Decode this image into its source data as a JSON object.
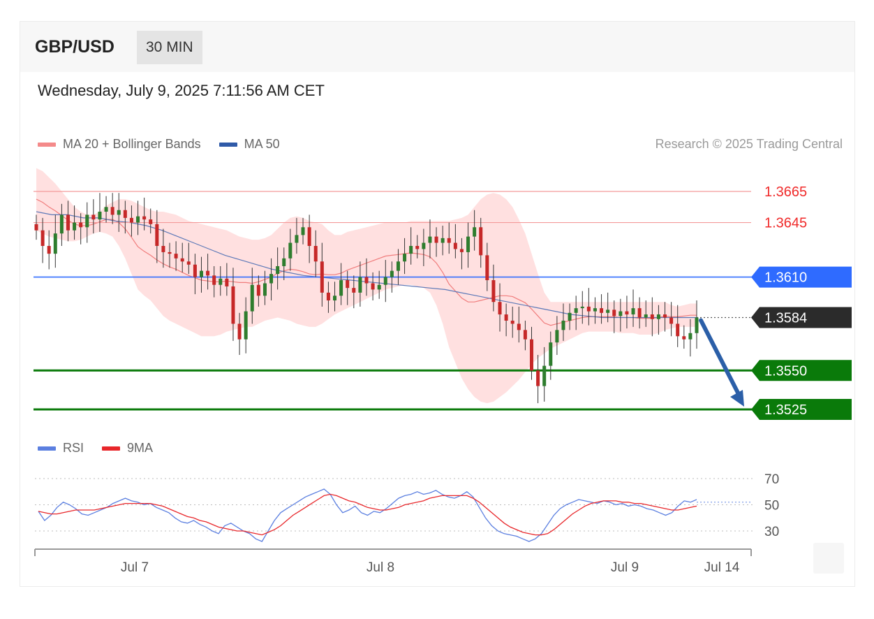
{
  "header": {
    "pair": "GBP/USD",
    "timeframe": "30 MIN",
    "datetime": "Wednesday, July 9, 2025 7:11:56 AM CET"
  },
  "legend_top": [
    {
      "label": "MA 20 + Bollinger Bands",
      "color": "#f08080"
    },
    {
      "label": "MA 50",
      "color": "#2f5aa8"
    }
  ],
  "legend_bottom": [
    {
      "label": "RSI",
      "color": "#5b7fe0"
    },
    {
      "label": "9MA",
      "color": "#e8262a"
    }
  ],
  "copyright": "Research © 2025 Trading Central",
  "chart_data": [
    {
      "type": "candlestick",
      "ylim": [
        1.3515,
        1.3685
      ],
      "x_ticks": [
        "Jul 7",
        "Jul 8",
        "Jul 9",
        "Jul 14"
      ],
      "levels": [
        {
          "value": 1.3665,
          "label": "1.3665",
          "style": "resistance",
          "color": "#f02a2a"
        },
        {
          "value": 1.3645,
          "label": "1.3645",
          "style": "resistance",
          "color": "#f02a2a"
        },
        {
          "value": 1.361,
          "label": "1.3610",
          "style": "pivot",
          "color": "#2f6bff"
        },
        {
          "value": 1.3584,
          "label": "1.3584",
          "style": "last_price",
          "color": "#2b2b2b"
        },
        {
          "value": 1.355,
          "label": "1.3550",
          "style": "support",
          "color": "#0a7a0a"
        },
        {
          "value": 1.3525,
          "label": "1.3525",
          "style": "support",
          "color": "#0a7a0a"
        }
      ],
      "close_path": [
        1.364,
        1.363,
        1.3625,
        1.3638,
        1.365,
        1.364,
        1.3645,
        1.3642,
        1.365,
        1.3647,
        1.3652,
        1.3655,
        1.365,
        1.3653,
        1.3648,
        1.3645,
        1.3649,
        1.3647,
        1.3644,
        1.363,
        1.3626,
        1.3625,
        1.3622,
        1.362,
        1.3618,
        1.361,
        1.3614,
        1.3611,
        1.3605,
        1.3609,
        1.3604,
        1.358,
        1.357,
        1.3588,
        1.3605,
        1.3598,
        1.3606,
        1.3612,
        1.3617,
        1.3622,
        1.3632,
        1.3637,
        1.3642,
        1.363,
        1.362,
        1.36,
        1.3595,
        1.3598,
        1.3608,
        1.3603,
        1.36,
        1.361,
        1.3606,
        1.3602,
        1.3605,
        1.361,
        1.3614,
        1.362,
        1.3625,
        1.363,
        1.3628,
        1.3632,
        1.3636,
        1.3632,
        1.3635,
        1.3632,
        1.3628,
        1.3626,
        1.3636,
        1.3642,
        1.3624,
        1.3608,
        1.3594,
        1.3586,
        1.3582,
        1.358,
        1.3576,
        1.357,
        1.355,
        1.354,
        1.3553,
        1.3568,
        1.3576,
        1.3582,
        1.3587,
        1.359,
        1.3591,
        1.3588,
        1.359,
        1.3587,
        1.3589,
        1.3585,
        1.3588,
        1.3586,
        1.359,
        1.3584,
        1.3586,
        1.3583,
        1.3586,
        1.3584,
        1.358,
        1.3572,
        1.357,
        1.3574,
        1.3584
      ],
      "bollinger_upper": [
        1.368,
        1.3678,
        1.3674,
        1.367,
        1.3665,
        1.366,
        1.3655,
        1.3652,
        1.365,
        1.365,
        1.3652,
        1.3656,
        1.3658,
        1.366,
        1.366,
        1.3659,
        1.3657,
        1.3655,
        1.3653,
        1.3652,
        1.3652,
        1.3651,
        1.365,
        1.3648,
        1.3646,
        1.3645,
        1.3644,
        1.3643,
        1.3642,
        1.3641,
        1.364,
        1.3638,
        1.3636,
        1.3635,
        1.3634,
        1.3634,
        1.3635,
        1.3637,
        1.3641,
        1.3645,
        1.3648,
        1.3649,
        1.3648,
        1.3646,
        1.3645,
        1.3644,
        1.364,
        1.3637,
        1.3637,
        1.3639,
        1.364,
        1.3641,
        1.3642,
        1.3643,
        1.3644,
        1.3645,
        1.3645,
        1.3645,
        1.3645,
        1.3646,
        1.3646,
        1.3646,
        1.3646,
        1.3646,
        1.3646,
        1.3646,
        1.3647,
        1.3648,
        1.365,
        1.3655,
        1.366,
        1.3663,
        1.3664,
        1.3663,
        1.366,
        1.3655,
        1.3647,
        1.3638,
        1.3625,
        1.3612,
        1.36,
        1.3594,
        1.3594,
        1.3594,
        1.3594,
        1.3594,
        1.3594,
        1.3594,
        1.3594,
        1.3594,
        1.3594,
        1.3594,
        1.3594,
        1.3594,
        1.3594,
        1.3594,
        1.3594,
        1.3594,
        1.3594,
        1.3594,
        1.3592,
        1.3591,
        1.3592,
        1.3593,
        1.3593
      ],
      "bollinger_lower": [
        1.364,
        1.3638,
        1.3636,
        1.3635,
        1.3634,
        1.3633,
        1.3633,
        1.3634,
        1.3636,
        1.3638,
        1.3639,
        1.3638,
        1.3636,
        1.363,
        1.3622,
        1.3612,
        1.3602,
        1.3598,
        1.3595,
        1.359,
        1.3585,
        1.3582,
        1.358,
        1.3578,
        1.3576,
        1.3574,
        1.3572,
        1.3572,
        1.3572,
        1.3573,
        1.3575,
        1.3576,
        1.3577,
        1.3578,
        1.3578,
        1.358,
        1.3582,
        1.3583,
        1.3584,
        1.3583,
        1.3582,
        1.358,
        1.3579,
        1.3578,
        1.3578,
        1.358,
        1.3583,
        1.3586,
        1.3588,
        1.359,
        1.3592,
        1.3594,
        1.3596,
        1.3598,
        1.36,
        1.3602,
        1.3603,
        1.3604,
        1.3605,
        1.3605,
        1.3604,
        1.3603,
        1.36,
        1.3592,
        1.358,
        1.3565,
        1.3555,
        1.3545,
        1.3538,
        1.3533,
        1.353,
        1.3529,
        1.353,
        1.3533,
        1.3536,
        1.354,
        1.3544,
        1.3549,
        1.3554,
        1.3558,
        1.3561,
        1.3564,
        1.3566,
        1.3568,
        1.357,
        1.3572,
        1.3574,
        1.3575,
        1.3575,
        1.3575,
        1.3575,
        1.3575,
        1.3574,
        1.3574,
        1.3574,
        1.3573,
        1.3573,
        1.3573,
        1.3574,
        1.3576,
        1.3577,
        1.3578,
        1.3578,
        1.3578,
        1.3578
      ],
      "ma50": [
        1.3652,
        1.365,
        1.365,
        1.3648,
        1.3648,
        1.3646,
        1.3645,
        1.3643,
        1.364,
        1.3636,
        1.3632,
        1.3628,
        1.3624,
        1.3621,
        1.3618,
        1.3615,
        1.3613,
        1.3611,
        1.361,
        1.3609,
        1.3608,
        1.3607,
        1.3606,
        1.3605,
        1.3604,
        1.3603,
        1.3602,
        1.36,
        1.3598,
        1.3596,
        1.3594,
        1.3592,
        1.359,
        1.3588,
        1.3586,
        1.3585,
        1.3584,
        1.3584,
        1.3584,
        1.3584,
        1.3584,
        1.3584,
        1.3584
      ],
      "trend_arrow": {
        "from": 1.3584,
        "to": 1.3525
      }
    },
    {
      "type": "line",
      "title": "RSI",
      "ylim": [
        20,
        80
      ],
      "y_ticks": [
        70,
        50,
        30
      ],
      "series": [
        {
          "name": "RSI",
          "color": "#5b7fe0"
        },
        {
          "name": "9MA",
          "color": "#e8262a"
        }
      ],
      "rsi": [
        45,
        38,
        42,
        48,
        52,
        50,
        47,
        43,
        42,
        44,
        46,
        48,
        51,
        53,
        55,
        53,
        52,
        50,
        51,
        48,
        46,
        44,
        40,
        37,
        36,
        38,
        35,
        33,
        30,
        28,
        34,
        36,
        33,
        30,
        28,
        24,
        22,
        30,
        38,
        44,
        47,
        50,
        53,
        56,
        58,
        60,
        62,
        58,
        50,
        44,
        46,
        49,
        44,
        42,
        45,
        44,
        47,
        51,
        55,
        57,
        58,
        60,
        58,
        59,
        61,
        58,
        56,
        55,
        57,
        60,
        56,
        48,
        40,
        34,
        30,
        28,
        27,
        26,
        24,
        22,
        24,
        28,
        35,
        42,
        47,
        50,
        52,
        54,
        53,
        52,
        51,
        53,
        52,
        50,
        51,
        49,
        50,
        49,
        47,
        46,
        44,
        42,
        44,
        49,
        53,
        52,
        54
      ],
      "rsi_ma": [
        45,
        44,
        43,
        43,
        44,
        45,
        46,
        46,
        46,
        46,
        47,
        48,
        49,
        50,
        51,
        51,
        51,
        51,
        51,
        50,
        49,
        47,
        45,
        43,
        41,
        40,
        38,
        37,
        35,
        33,
        32,
        31,
        30,
        30,
        29,
        28,
        27,
        29,
        31,
        34,
        38,
        42,
        45,
        48,
        51,
        54,
        57,
        58,
        57,
        55,
        53,
        52,
        50,
        48,
        47,
        46,
        46,
        47,
        48,
        50,
        51,
        52,
        53,
        55,
        56,
        57,
        57,
        57,
        57,
        57,
        55,
        52,
        48,
        44,
        40,
        36,
        33,
        31,
        29,
        28,
        27,
        27,
        28,
        31,
        35,
        39,
        43,
        46,
        49,
        51,
        52,
        53,
        53,
        53,
        52,
        52,
        51,
        51,
        50,
        49,
        48,
        47,
        46,
        46,
        47,
        48,
        49
      ]
    }
  ]
}
